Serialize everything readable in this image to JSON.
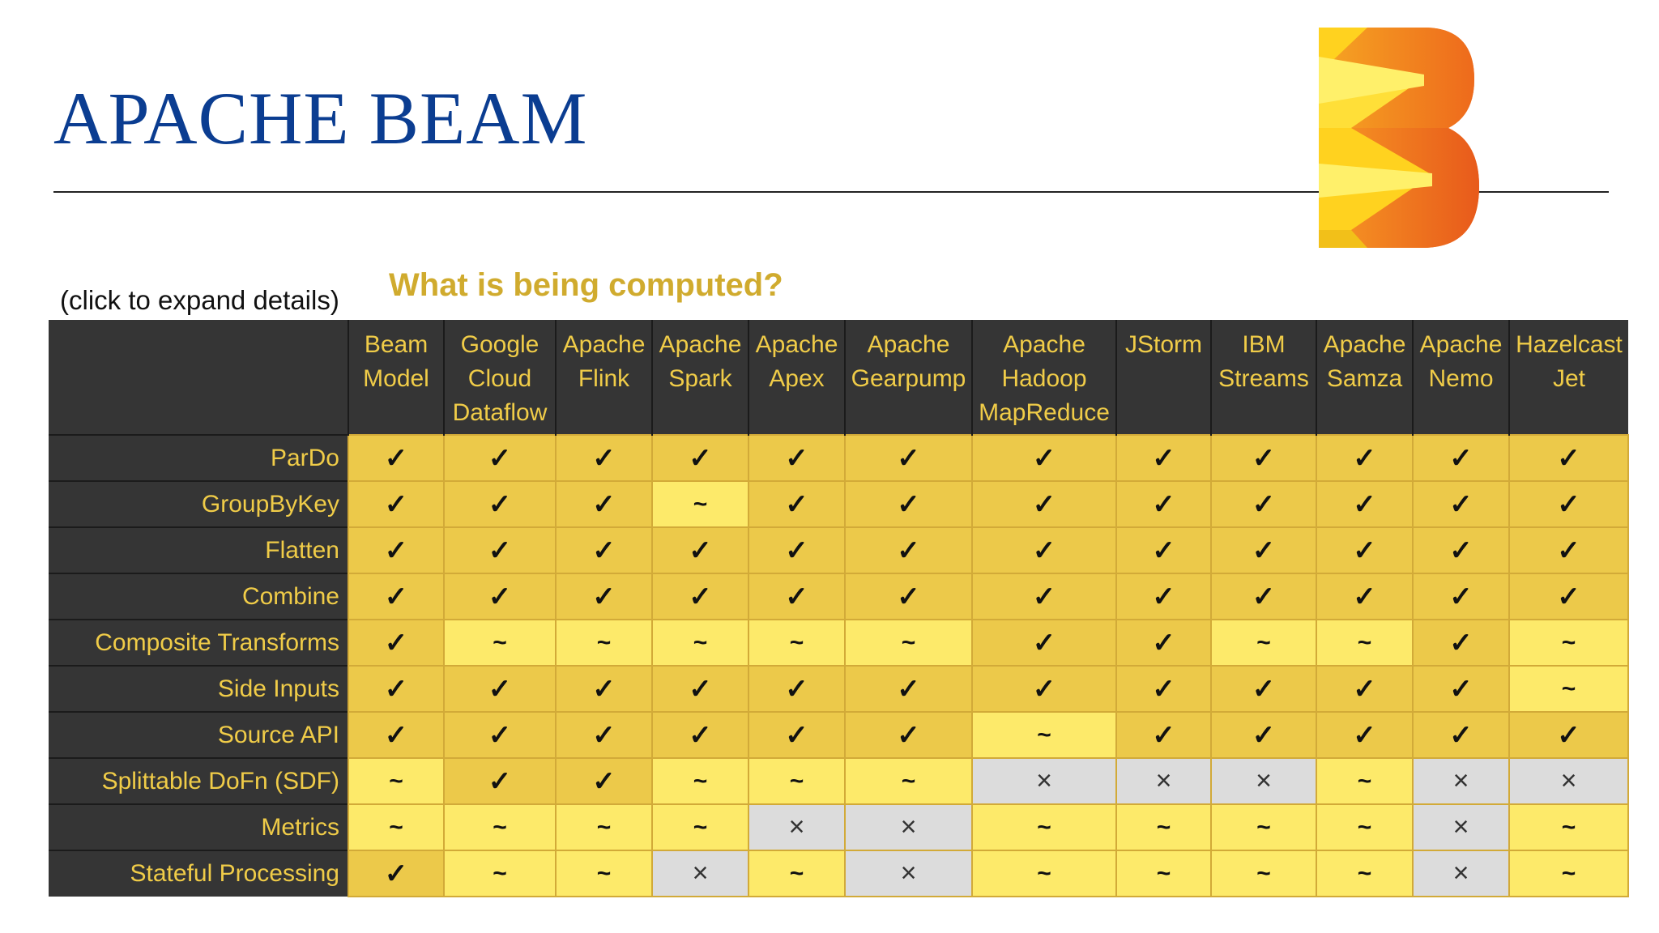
{
  "title": "APACHE BEAM",
  "hint": "(click to expand details)",
  "subtitle": "What is being computed?",
  "colors": {
    "title": "#0b3d91",
    "header_bg": "#353535",
    "header_text": "#f0cc48",
    "subtitle": "#d0ab2e",
    "full_support": "#ecc94a",
    "partial_support": "#fdea6a",
    "no_support": "#dcdcdc"
  },
  "symbols": {
    "yes": "✓",
    "partial": "~",
    "no": "×"
  },
  "runners": [
    [
      "Beam",
      "Model"
    ],
    [
      "Google",
      "Cloud",
      "Dataflow"
    ],
    [
      "Apache",
      "Flink"
    ],
    [
      "Apache",
      "Spark"
    ],
    [
      "Apache",
      "Apex"
    ],
    [
      "Apache",
      "Gearpump"
    ],
    [
      "Apache",
      "Hadoop",
      "MapReduce"
    ],
    [
      "JStorm"
    ],
    [
      "IBM",
      "Streams"
    ],
    [
      "Apache",
      "Samza"
    ],
    [
      "Apache",
      "Nemo"
    ],
    [
      "Hazelcast",
      "Jet"
    ]
  ],
  "rows": [
    {
      "feature": "ParDo",
      "cells": [
        "yes",
        "yes",
        "yes",
        "yes",
        "yes",
        "yes",
        "yes",
        "yes",
        "yes",
        "yes",
        "yes",
        "yes"
      ]
    },
    {
      "feature": "GroupByKey",
      "cells": [
        "yes",
        "yes",
        "yes",
        "partial",
        "yes",
        "yes",
        "yes",
        "yes",
        "yes",
        "yes",
        "yes",
        "yes"
      ]
    },
    {
      "feature": "Flatten",
      "cells": [
        "yes",
        "yes",
        "yes",
        "yes",
        "yes",
        "yes",
        "yes",
        "yes",
        "yes",
        "yes",
        "yes",
        "yes"
      ]
    },
    {
      "feature": "Combine",
      "cells": [
        "yes",
        "yes",
        "yes",
        "yes",
        "yes",
        "yes",
        "yes",
        "yes",
        "yes",
        "yes",
        "yes",
        "yes"
      ]
    },
    {
      "feature": "Composite Transforms",
      "cells": [
        "yes",
        "partial",
        "partial",
        "partial",
        "partial",
        "partial",
        "yes",
        "yes",
        "partial",
        "partial",
        "yes",
        "partial"
      ]
    },
    {
      "feature": "Side Inputs",
      "cells": [
        "yes",
        "yes",
        "yes",
        "yes",
        "yes",
        "yes",
        "yes",
        "yes",
        "yes",
        "yes",
        "yes",
        "partial"
      ]
    },
    {
      "feature": "Source API",
      "cells": [
        "yes",
        "yes",
        "yes",
        "yes",
        "yes",
        "yes",
        "partial",
        "yes",
        "yes",
        "yes",
        "yes",
        "yes"
      ]
    },
    {
      "feature": "Splittable DoFn (SDF)",
      "cells": [
        "partial",
        "yes",
        "yes",
        "partial",
        "partial",
        "partial",
        "no",
        "no",
        "no",
        "partial",
        "no",
        "no"
      ]
    },
    {
      "feature": "Metrics",
      "cells": [
        "partial",
        "partial",
        "partial",
        "partial",
        "no",
        "no",
        "partial",
        "partial",
        "partial",
        "partial",
        "no",
        "partial"
      ]
    },
    {
      "feature": "Stateful Processing",
      "cells": [
        "yes",
        "partial",
        "partial",
        "no",
        "partial",
        "no",
        "partial",
        "partial",
        "partial",
        "partial",
        "no",
        "partial"
      ]
    }
  ]
}
